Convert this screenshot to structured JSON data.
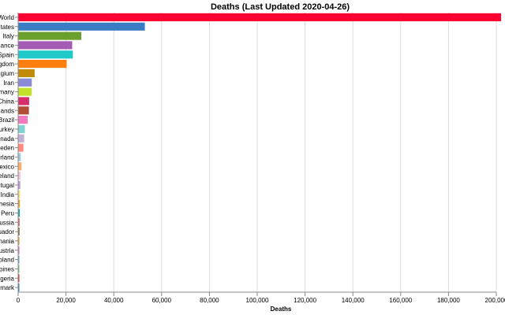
{
  "chart_data": {
    "type": "bar",
    "orientation": "horizontal",
    "title": "Deaths (Last Updated 2020-04-26)",
    "xlabel": "Deaths",
    "ylabel": "",
    "xlim": [
      0,
      200000
    ],
    "x_ticks": [
      0,
      20000,
      40000,
      60000,
      80000,
      100000,
      120000,
      140000,
      160000,
      180000,
      200000
    ],
    "x_tick_labels": [
      "0",
      "20,000",
      "40,000",
      "60,000",
      "80,000",
      "100,000",
      "120,000",
      "140,000",
      "160,000",
      "180,000",
      "200,000"
    ],
    "grid": true,
    "categories": [
      "World",
      "tates",
      "Italy",
      "ance",
      "Spain",
      "gdom",
      "gium",
      "Iran",
      "many",
      "China",
      "ands",
      "Brazil",
      "urkey",
      "nada",
      "eden",
      "rland",
      "exico",
      "eland",
      "tugal",
      "India",
      "nesia",
      "Peru",
      "ussia",
      "uador",
      "nania",
      "ustria",
      "oland",
      "pines",
      "geria",
      "mark"
    ],
    "values": [
      202000,
      53000,
      26400,
      22600,
      22900,
      20300,
      6900,
      5700,
      5700,
      4600,
      4500,
      4000,
      2800,
      2500,
      2200,
      1100,
      1400,
      1000,
      900,
      800,
      720,
      700,
      600,
      580,
      550,
      530,
      520,
      450,
      400,
      420
    ],
    "colors": [
      "#ff0033",
      "#3b7dc4",
      "#6aa02b",
      "#a35bb3",
      "#22c9c9",
      "#ff7f0e",
      "#c08c0a",
      "#8a8ad6",
      "#c3e02a",
      "#d62d6b",
      "#b04e38",
      "#f27ac2",
      "#7fd3d0",
      "#c5b0d5",
      "#ff8a80",
      "#9ecae1",
      "#fdae6b",
      "#f4c6db",
      "#c49ad8",
      "#f7e27a",
      "#e6a820",
      "#1fa3a8",
      "#d95f5f",
      "#8c6d31",
      "#f1a340",
      "#e377c2",
      "#6baed6",
      "#74c476",
      "#de2d26",
      "#3182bd"
    ]
  }
}
